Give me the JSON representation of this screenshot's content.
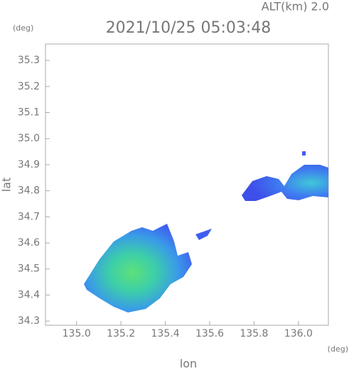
{
  "chart_data": {
    "type": "map",
    "title": "2021/10/25 05:03:48",
    "annotation": "ALT(km) 2.0",
    "y_unit": "(deg)",
    "x_unit": "(deg)",
    "x_label": "lon",
    "y_label": "lat",
    "xlim": [
      134.86,
      136.135
    ],
    "xticks": [
      {
        "value": 135.0,
        "label": "135.0"
      },
      135.2,
      135.4,
      135.6,
      135.8,
      {
        "value": 136.0,
        "label": "136.0"
      }
    ],
    "ylim": [
      34.284,
      35.363
    ],
    "yticks": [
      {
        "value": 34.3,
        "label": "34.3"
      },
      34.4,
      34.5,
      34.6,
      34.7,
      34.8,
      34.9,
      {
        "value": 35.0,
        "label": "35.0"
      },
      35.1,
      35.2,
      35.3
    ]
  }
}
